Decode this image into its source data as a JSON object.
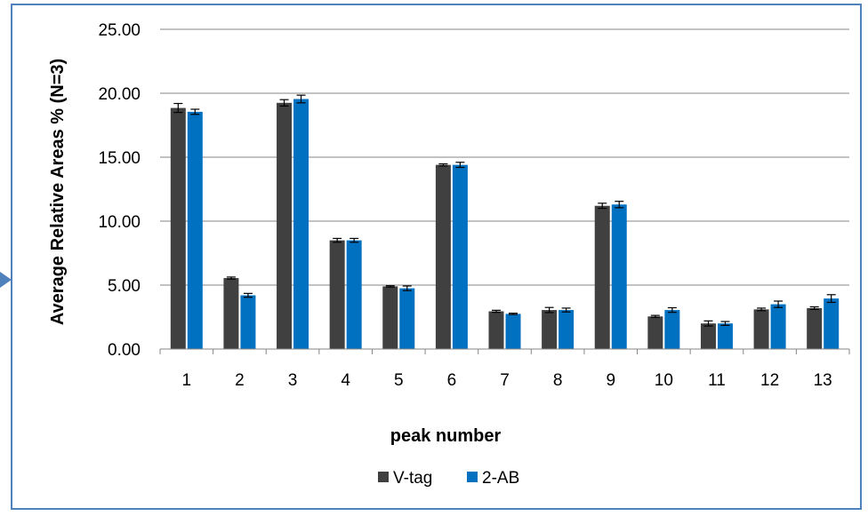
{
  "chart_data": {
    "type": "bar",
    "title": "",
    "xlabel": "peak number",
    "ylabel": "Average Relative Areas % (N=3)",
    "ylim": [
      0,
      25
    ],
    "yticks": [
      "0.00",
      "5.00",
      "10.00",
      "15.00",
      "20.00",
      "25.00"
    ],
    "grid": true,
    "legend_position": "bottom",
    "categories": [
      "1",
      "2",
      "3",
      "4",
      "5",
      "6",
      "7",
      "8",
      "9",
      "10",
      "11",
      "12",
      "13"
    ],
    "series": [
      {
        "name": "V-tag",
        "color": "#404040",
        "values": [
          18.85,
          5.55,
          19.25,
          8.5,
          4.9,
          14.4,
          2.95,
          3.05,
          11.2,
          2.55,
          2.0,
          3.1,
          3.2
        ],
        "errors": [
          0.35,
          0.08,
          0.25,
          0.15,
          0.05,
          0.08,
          0.08,
          0.2,
          0.2,
          0.08,
          0.2,
          0.1,
          0.1
        ]
      },
      {
        "name": "2-AB",
        "color": "#0070c0",
        "values": [
          18.55,
          4.2,
          19.55,
          8.5,
          4.75,
          14.4,
          2.75,
          3.05,
          11.3,
          3.05,
          2.0,
          3.5,
          3.95
        ],
        "errors": [
          0.2,
          0.15,
          0.3,
          0.15,
          0.18,
          0.2,
          0.05,
          0.15,
          0.25,
          0.18,
          0.15,
          0.25,
          0.3
        ]
      }
    ]
  }
}
